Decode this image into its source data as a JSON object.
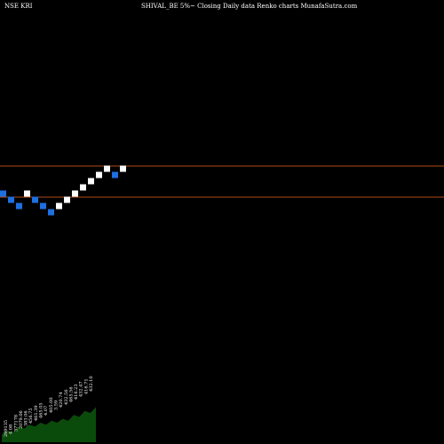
{
  "chart_data": {
    "type": "renko",
    "symbol_label": "NSE KRI",
    "title": "SHIVAL_BE 5%~  Closing Daily data  Renko  charts MunafaSutra.com",
    "ylim": [
      0,
      100
    ],
    "reference_lines": [
      {
        "value": 62.6,
        "color": "#b04a1a"
      },
      {
        "value": 55.6,
        "color": "#b04a1a"
      }
    ],
    "bricks": [
      {
        "value": 56.4,
        "direction": "down"
      },
      {
        "value": 55.0,
        "direction": "down"
      },
      {
        "value": 53.6,
        "direction": "down"
      },
      {
        "value": 56.4,
        "direction": "up"
      },
      {
        "value": 55.0,
        "direction": "down"
      },
      {
        "value": 53.6,
        "direction": "down"
      },
      {
        "value": 52.2,
        "direction": "down"
      },
      {
        "value": 53.6,
        "direction": "up"
      },
      {
        "value": 55.0,
        "direction": "up"
      },
      {
        "value": 56.4,
        "direction": "up"
      },
      {
        "value": 57.8,
        "direction": "up"
      },
      {
        "value": 59.2,
        "direction": "up"
      },
      {
        "value": 60.6,
        "direction": "up"
      },
      {
        "value": 62.0,
        "direction": "up"
      },
      {
        "value": 60.6,
        "direction": "down"
      },
      {
        "value": 62.0,
        "direction": "up"
      }
    ],
    "volume_labels": [
      "299135",
      "4.08",
      "377178",
      "2079.06",
      "383.06",
      "456.75",
      "461.39",
      "465.05",
      "4.07",
      "405.00",
      "3.59",
      "420.74",
      "432.56",
      "465.56",
      "416.23",
      "432.47",
      "416.71",
      "432.10"
    ],
    "volume_values": [
      4,
      6,
      5,
      8,
      7,
      9,
      8,
      10,
      9,
      11,
      10,
      12,
      11,
      14,
      13,
      16,
      15,
      18
    ],
    "colors": {
      "background": "#000000",
      "up_brick": "#ffffff",
      "down_brick": "#1e6fe0",
      "reference_line": "#b04a1a",
      "volume_area": "#0a4a0a",
      "text": "#ffffff"
    }
  }
}
